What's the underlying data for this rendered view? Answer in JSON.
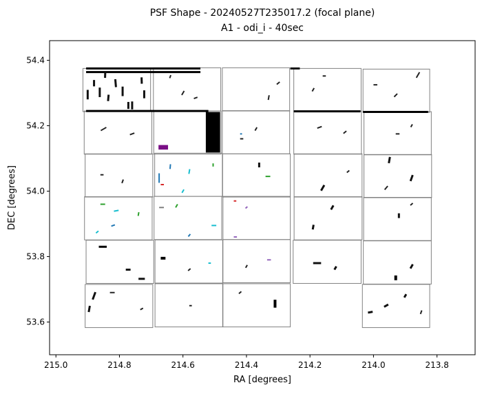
{
  "chart_data": {
    "type": "scatter",
    "title": "PSF Shape - 20240527T235017.2 (focal plane)",
    "subtitle": "A1 - odi_i - 40sec",
    "xlabel": "RA [degrees]",
    "ylabel": "DEC [degrees]",
    "xlim": [
      215.02,
      213.68
    ],
    "ylim": [
      53.5,
      54.46
    ],
    "x_inverted": true,
    "xticks": [
      {
        "value": 215.0,
        "label": "215.0"
      },
      {
        "value": 214.8,
        "label": "214.8"
      },
      {
        "value": 214.6,
        "label": "214.6"
      },
      {
        "value": 214.4,
        "label": "214.4"
      },
      {
        "value": 214.2,
        "label": "214.2"
      },
      {
        "value": 214.0,
        "label": "214.0"
      },
      {
        "value": 213.8,
        "label": "213.8"
      }
    ],
    "yticks": [
      {
        "value": 53.6,
        "label": "53.6"
      },
      {
        "value": 53.8,
        "label": "53.8"
      },
      {
        "value": 54.0,
        "label": "54.0"
      },
      {
        "value": 54.2,
        "label": "54.2"
      },
      {
        "value": 54.4,
        "label": "54.4"
      }
    ],
    "grid": false,
    "chip_outline_color": "#808080",
    "chips": [
      {
        "ra": [
          214.915,
          214.702
        ],
        "dec": [
          54.243,
          54.375
        ]
      },
      {
        "ra": [
          214.693,
          214.481
        ],
        "dec": [
          54.245,
          54.377
        ]
      },
      {
        "ra": [
          214.476,
          214.264
        ],
        "dec": [
          54.245,
          54.377
        ]
      },
      {
        "ra": [
          214.251,
          214.039
        ],
        "dec": [
          54.243,
          54.375
        ]
      },
      {
        "ra": [
          214.033,
          213.823
        ],
        "dec": [
          54.241,
          54.373
        ]
      },
      {
        "ra": [
          214.911,
          214.698
        ],
        "dec": [
          54.113,
          54.245
        ]
      },
      {
        "ra": [
          214.692,
          214.48
        ],
        "dec": [
          54.113,
          54.245
        ]
      },
      {
        "ra": [
          214.476,
          214.264
        ],
        "dec": [
          54.114,
          54.246
        ]
      },
      {
        "ra": [
          214.251,
          214.038
        ],
        "dec": [
          54.113,
          54.245
        ]
      },
      {
        "ra": [
          214.03,
          213.818
        ],
        "dec": [
          54.111,
          54.243
        ]
      },
      {
        "ra": [
          214.908,
          214.695
        ],
        "dec": [
          53.982,
          54.114
        ]
      },
      {
        "ra": [
          214.689,
          214.476
        ],
        "dec": [
          53.984,
          54.116
        ]
      },
      {
        "ra": [
          214.475,
          214.262
        ],
        "dec": [
          53.982,
          54.114
        ]
      },
      {
        "ra": [
          214.25,
          214.036
        ],
        "dec": [
          53.982,
          54.114
        ]
      },
      {
        "ra": [
          214.03,
          213.817
        ],
        "dec": [
          53.98,
          54.112
        ]
      },
      {
        "ra": [
          214.91,
          214.697
        ],
        "dec": [
          53.851,
          53.983
        ]
      },
      {
        "ra": [
          214.691,
          214.478
        ],
        "dec": [
          53.852,
          53.984
        ]
      },
      {
        "ra": [
          214.474,
          214.262
        ],
        "dec": [
          53.852,
          53.984
        ]
      },
      {
        "ra": [
          214.25,
          214.036
        ],
        "dec": [
          53.851,
          53.983
        ]
      },
      {
        "ra": [
          214.031,
          213.818
        ],
        "dec": [
          53.849,
          53.981
        ]
      },
      {
        "ra": [
          214.905,
          214.692
        ],
        "dec": [
          53.718,
          53.85
        ]
      },
      {
        "ra": [
          214.688,
          214.475
        ],
        "dec": [
          53.719,
          53.851
        ]
      },
      {
        "ra": [
          214.474,
          214.262
        ],
        "dec": [
          53.72,
          53.852
        ]
      },
      {
        "ra": [
          214.253,
          214.039
        ],
        "dec": [
          53.718,
          53.85
        ]
      },
      {
        "ra": [
          214.032,
          213.818
        ],
        "dec": [
          53.716,
          53.848
        ]
      },
      {
        "ra": [
          214.908,
          214.695
        ],
        "dec": [
          53.583,
          53.715
        ]
      },
      {
        "ra": [
          214.688,
          214.475
        ],
        "dec": [
          53.585,
          53.717
        ]
      },
      {
        "ra": [
          214.474,
          214.262
        ],
        "dec": [
          53.585,
          53.717
        ]
      },
      {
        "ra": [
          214.035,
          213.823
        ],
        "dec": [
          53.583,
          53.715
        ]
      }
    ],
    "highlights": [
      {
        "kind": "rect",
        "ra": [
          214.528,
          214.483
        ],
        "dec": [
          54.118,
          54.242
        ],
        "color": "#000000"
      },
      {
        "kind": "rect",
        "ra": [
          214.677,
          214.647
        ],
        "dec": [
          54.127,
          54.141
        ],
        "color": "#7a0f86"
      }
    ],
    "psf_sticks": [
      {
        "ra": 214.905,
        "dec": 54.375,
        "len": 0.36,
        "ang": 0,
        "color": "#000000",
        "w": 3
      },
      {
        "ra": 214.905,
        "dec": 54.364,
        "len": 0.36,
        "ang": 0,
        "color": "#000000",
        "w": 3
      },
      {
        "ra": 214.88,
        "dec": 54.33,
        "len": 0.02,
        "ang": 90,
        "color": "#111111",
        "w": 3
      },
      {
        "ra": 214.862,
        "dec": 54.302,
        "len": 0.03,
        "ang": 90,
        "color": "#111111",
        "w": 3
      },
      {
        "ra": 214.835,
        "dec": 54.285,
        "len": 0.02,
        "ang": 85,
        "color": "#111111",
        "w": 3
      },
      {
        "ra": 214.812,
        "dec": 54.33,
        "len": 0.025,
        "ang": 95,
        "color": "#111111",
        "w": 3
      },
      {
        "ra": 214.79,
        "dec": 54.305,
        "len": 0.03,
        "ang": 90,
        "color": "#111111",
        "w": 3
      },
      {
        "ra": 214.76,
        "dec": 54.262,
        "len": 0.025,
        "ang": 90,
        "color": "#111111",
        "w": 3
      },
      {
        "ra": 214.73,
        "dec": 54.338,
        "len": 0.02,
        "ang": 92,
        "color": "#111111",
        "w": 3
      },
      {
        "ra": 214.722,
        "dec": 54.296,
        "len": 0.025,
        "ang": 90,
        "color": "#111111",
        "w": 3
      },
      {
        "ra": 214.9,
        "dec": 54.295,
        "len": 0.03,
        "ang": 90,
        "color": "#111111",
        "w": 3
      },
      {
        "ra": 214.845,
        "dec": 54.355,
        "len": 0.018,
        "ang": 88,
        "color": "#111111",
        "w": 3
      },
      {
        "ra": 214.772,
        "dec": 54.262,
        "len": 0.022,
        "ang": 90,
        "color": "#111111",
        "w": 3
      },
      {
        "ra": 214.6,
        "dec": 54.3,
        "len": 0.015,
        "ang": 60,
        "color": "#222222",
        "w": 2
      },
      {
        "ra": 214.56,
        "dec": 54.285,
        "len": 0.012,
        "ang": 20,
        "color": "#222222",
        "w": 2
      },
      {
        "ra": 214.64,
        "dec": 54.35,
        "len": 0.01,
        "ang": 70,
        "color": "#222222",
        "w": 2
      },
      {
        "ra": 214.33,
        "dec": 54.286,
        "len": 0.015,
        "ang": 80,
        "color": "#222222",
        "w": 2
      },
      {
        "ra": 214.3,
        "dec": 54.33,
        "len": 0.012,
        "ang": 40,
        "color": "#222222",
        "w": 2
      },
      {
        "ra": 214.262,
        "dec": 54.375,
        "len": 0.03,
        "ang": 0,
        "color": "#111111",
        "w": 3
      },
      {
        "ra": 214.16,
        "dec": 54.352,
        "len": 0.01,
        "ang": 0,
        "color": "#222222",
        "w": 2
      },
      {
        "ra": 214.19,
        "dec": 54.31,
        "len": 0.012,
        "ang": 60,
        "color": "#222222",
        "w": 2
      },
      {
        "ra": 213.86,
        "dec": 54.355,
        "len": 0.02,
        "ang": 60,
        "color": "#222222",
        "w": 2
      },
      {
        "ra": 213.93,
        "dec": 54.293,
        "len": 0.014,
        "ang": 45,
        "color": "#222222",
        "w": 2
      },
      {
        "ra": 214.0,
        "dec": 54.325,
        "len": 0.012,
        "ang": 0,
        "color": "#222222",
        "w": 2
      },
      {
        "ra": 214.905,
        "dec": 54.245,
        "len": 0.385,
        "ang": 0,
        "color": "#000000",
        "w": 3
      },
      {
        "ra": 214.251,
        "dec": 54.244,
        "len": 0.21,
        "ang": 0,
        "color": "#000000",
        "w": 3
      },
      {
        "ra": 214.033,
        "dec": 54.242,
        "len": 0.205,
        "ang": 0,
        "color": "#000000",
        "w": 3
      },
      {
        "ra": 214.85,
        "dec": 54.19,
        "len": 0.02,
        "ang": 30,
        "color": "#222222",
        "w": 2
      },
      {
        "ra": 214.76,
        "dec": 54.175,
        "len": 0.015,
        "ang": 20,
        "color": "#222222",
        "w": 2
      },
      {
        "ra": 214.42,
        "dec": 54.16,
        "len": 0.01,
        "ang": 0,
        "color": "#222222",
        "w": 2
      },
      {
        "ra": 214.37,
        "dec": 54.19,
        "len": 0.012,
        "ang": 60,
        "color": "#222222",
        "w": 2
      },
      {
        "ra": 214.42,
        "dec": 54.175,
        "len": 0.006,
        "ang": 0,
        "color": "#1f77b4",
        "w": 2
      },
      {
        "ra": 214.17,
        "dec": 54.195,
        "len": 0.015,
        "ang": 20,
        "color": "#222222",
        "w": 2
      },
      {
        "ra": 214.09,
        "dec": 54.18,
        "len": 0.012,
        "ang": 40,
        "color": "#222222",
        "w": 2
      },
      {
        "ra": 213.93,
        "dec": 54.175,
        "len": 0.012,
        "ang": 0,
        "color": "#222222",
        "w": 2
      },
      {
        "ra": 213.88,
        "dec": 54.2,
        "len": 0.01,
        "ang": 60,
        "color": "#222222",
        "w": 2
      },
      {
        "ra": 214.86,
        "dec": 54.05,
        "len": 0.01,
        "ang": 0,
        "color": "#222222",
        "w": 2
      },
      {
        "ra": 214.79,
        "dec": 54.03,
        "len": 0.012,
        "ang": 70,
        "color": "#222222",
        "w": 2
      },
      {
        "ra": 214.64,
        "dec": 54.075,
        "len": 0.015,
        "ang": 85,
        "color": "#1f77b4",
        "w": 2
      },
      {
        "ra": 214.675,
        "dec": 54.04,
        "len": 0.03,
        "ang": 90,
        "color": "#1f77b4",
        "w": 2
      },
      {
        "ra": 214.58,
        "dec": 54.06,
        "len": 0.015,
        "ang": 80,
        "color": "#17becf",
        "w": 2
      },
      {
        "ra": 214.6,
        "dec": 54.0,
        "len": 0.012,
        "ang": 60,
        "color": "#17becf",
        "w": 2
      },
      {
        "ra": 214.505,
        "dec": 54.08,
        "len": 0.01,
        "ang": 90,
        "color": "#2ca02c",
        "w": 2
      },
      {
        "ra": 214.67,
        "dec": 54.02,
        "len": 0.01,
        "ang": 0,
        "color": "#d62728",
        "w": 2
      },
      {
        "ra": 214.36,
        "dec": 54.08,
        "len": 0.015,
        "ang": 90,
        "color": "#111111",
        "w": 3
      },
      {
        "ra": 214.34,
        "dec": 54.045,
        "len": 0.015,
        "ang": 0,
        "color": "#2ca02c",
        "w": 2
      },
      {
        "ra": 214.16,
        "dec": 54.01,
        "len": 0.02,
        "ang": 60,
        "color": "#111111",
        "w": 3
      },
      {
        "ra": 214.08,
        "dec": 54.06,
        "len": 0.01,
        "ang": 40,
        "color": "#222222",
        "w": 2
      },
      {
        "ra": 213.95,
        "dec": 54.095,
        "len": 0.02,
        "ang": 80,
        "color": "#111111",
        "w": 3
      },
      {
        "ra": 213.88,
        "dec": 54.04,
        "len": 0.02,
        "ang": 70,
        "color": "#111111",
        "w": 3
      },
      {
        "ra": 213.96,
        "dec": 54.01,
        "len": 0.015,
        "ang": 50,
        "color": "#222222",
        "w": 2
      },
      {
        "ra": 214.86,
        "dec": 53.96,
        "len": 0.015,
        "ang": 0,
        "color": "#2ca02c",
        "w": 2
      },
      {
        "ra": 214.81,
        "dec": 53.94,
        "len": 0.015,
        "ang": 10,
        "color": "#17becf",
        "w": 2
      },
      {
        "ra": 214.74,
        "dec": 53.93,
        "len": 0.012,
        "ang": 80,
        "color": "#2ca02c",
        "w": 2
      },
      {
        "ra": 214.82,
        "dec": 53.895,
        "len": 0.012,
        "ang": 20,
        "color": "#1f77b4",
        "w": 2
      },
      {
        "ra": 214.87,
        "dec": 53.875,
        "len": 0.01,
        "ang": 40,
        "color": "#17becf",
        "w": 2
      },
      {
        "ra": 214.675,
        "dec": 53.95,
        "len": 0.015,
        "ang": 0,
        "color": "#7f7f7f",
        "w": 2
      },
      {
        "ra": 214.62,
        "dec": 53.955,
        "len": 0.012,
        "ang": 60,
        "color": "#2ca02c",
        "w": 2
      },
      {
        "ra": 214.51,
        "dec": 53.895,
        "len": 0.015,
        "ang": 0,
        "color": "#17becf",
        "w": 2
      },
      {
        "ra": 214.58,
        "dec": 53.865,
        "len": 0.01,
        "ang": 50,
        "color": "#1f77b4",
        "w": 2
      },
      {
        "ra": 214.44,
        "dec": 53.97,
        "len": 0.008,
        "ang": 0,
        "color": "#d62728",
        "w": 2
      },
      {
        "ra": 214.4,
        "dec": 53.95,
        "len": 0.008,
        "ang": 40,
        "color": "#9467bd",
        "w": 2
      },
      {
        "ra": 214.44,
        "dec": 53.86,
        "len": 0.01,
        "ang": 0,
        "color": "#9467bd",
        "w": 2
      },
      {
        "ra": 214.13,
        "dec": 53.95,
        "len": 0.015,
        "ang": 60,
        "color": "#111111",
        "w": 3
      },
      {
        "ra": 214.19,
        "dec": 53.89,
        "len": 0.015,
        "ang": 80,
        "color": "#111111",
        "w": 3
      },
      {
        "ra": 213.92,
        "dec": 53.925,
        "len": 0.015,
        "ang": 90,
        "color": "#111111",
        "w": 3
      },
      {
        "ra": 213.88,
        "dec": 53.96,
        "len": 0.01,
        "ang": 40,
        "color": "#222222",
        "w": 2
      },
      {
        "ra": 214.865,
        "dec": 53.83,
        "len": 0.025,
        "ang": 0,
        "color": "#000000",
        "w": 3
      },
      {
        "ra": 214.78,
        "dec": 53.76,
        "len": 0.015,
        "ang": 0,
        "color": "#111111",
        "w": 3
      },
      {
        "ra": 214.74,
        "dec": 53.732,
        "len": 0.02,
        "ang": 0,
        "color": "#111111",
        "w": 3
      },
      {
        "ra": 214.67,
        "dec": 53.795,
        "len": 0.015,
        "ang": 0,
        "color": "#000000",
        "w": 4
      },
      {
        "ra": 214.58,
        "dec": 53.76,
        "len": 0.01,
        "ang": 40,
        "color": "#222222",
        "w": 2
      },
      {
        "ra": 214.52,
        "dec": 53.78,
        "len": 0.008,
        "ang": 0,
        "color": "#17becf",
        "w": 2
      },
      {
        "ra": 214.335,
        "dec": 53.79,
        "len": 0.012,
        "ang": 0,
        "color": "#9467bd",
        "w": 2
      },
      {
        "ra": 214.4,
        "dec": 53.77,
        "len": 0.01,
        "ang": 60,
        "color": "#222222",
        "w": 2
      },
      {
        "ra": 214.19,
        "dec": 53.78,
        "len": 0.025,
        "ang": 0,
        "color": "#111111",
        "w": 3
      },
      {
        "ra": 214.12,
        "dec": 53.765,
        "len": 0.012,
        "ang": 60,
        "color": "#111111",
        "w": 3
      },
      {
        "ra": 213.93,
        "dec": 53.735,
        "len": 0.015,
        "ang": 90,
        "color": "#000000",
        "w": 4
      },
      {
        "ra": 213.88,
        "dec": 53.77,
        "len": 0.015,
        "ang": 60,
        "color": "#111111",
        "w": 3
      },
      {
        "ra": 214.88,
        "dec": 53.68,
        "len": 0.025,
        "ang": 70,
        "color": "#111111",
        "w": 3
      },
      {
        "ra": 214.895,
        "dec": 53.64,
        "len": 0.02,
        "ang": 80,
        "color": "#111111",
        "w": 3
      },
      {
        "ra": 214.83,
        "dec": 53.69,
        "len": 0.015,
        "ang": 0,
        "color": "#222222",
        "w": 2
      },
      {
        "ra": 214.73,
        "dec": 53.64,
        "len": 0.01,
        "ang": 30,
        "color": "#222222",
        "w": 2
      },
      {
        "ra": 214.58,
        "dec": 53.65,
        "len": 0.008,
        "ang": 0,
        "color": "#222222",
        "w": 2
      },
      {
        "ra": 214.31,
        "dec": 53.656,
        "len": 0.025,
        "ang": 90,
        "color": "#000000",
        "w": 4
      },
      {
        "ra": 214.42,
        "dec": 53.69,
        "len": 0.01,
        "ang": 40,
        "color": "#222222",
        "w": 2
      },
      {
        "ra": 214.01,
        "dec": 53.63,
        "len": 0.015,
        "ang": 10,
        "color": "#111111",
        "w": 3
      },
      {
        "ra": 213.96,
        "dec": 53.65,
        "len": 0.015,
        "ang": 30,
        "color": "#111111",
        "w": 3
      },
      {
        "ra": 213.9,
        "dec": 53.68,
        "len": 0.012,
        "ang": 60,
        "color": "#111111",
        "w": 3
      },
      {
        "ra": 213.85,
        "dec": 53.63,
        "len": 0.012,
        "ang": 70,
        "color": "#222222",
        "w": 2
      }
    ]
  }
}
